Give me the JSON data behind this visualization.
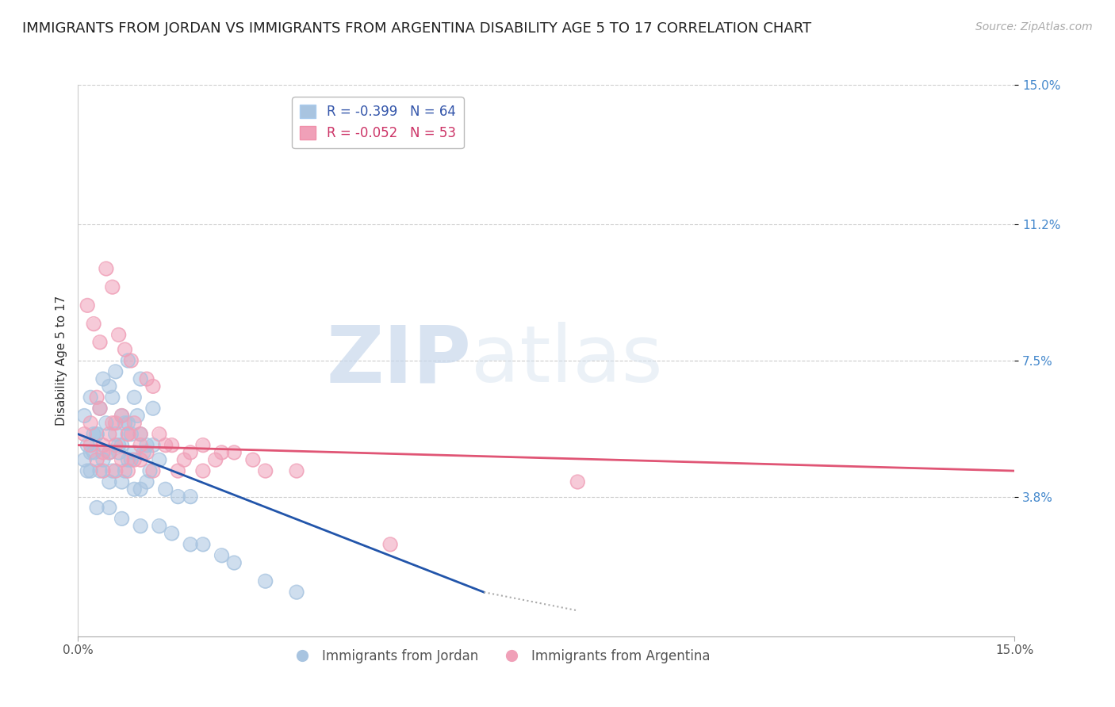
{
  "title": "IMMIGRANTS FROM JORDAN VS IMMIGRANTS FROM ARGENTINA DISABILITY AGE 5 TO 17 CORRELATION CHART",
  "source": "Source: ZipAtlas.com",
  "ylabel": "Disability Age 5 to 17",
  "xlabel": "",
  "xmin": 0.0,
  "xmax": 15.0,
  "ymin": 0.0,
  "ymax": 15.0,
  "yticks": [
    3.8,
    7.5,
    11.2,
    15.0
  ],
  "xticks": [
    0.0,
    15.0
  ],
  "grid_color": "#cccccc",
  "background_color": "#ffffff",
  "series1_label": "Immigrants from Jordan",
  "series1_color": "#a8c4e0",
  "series1_line_color": "#2255aa",
  "series1_R": "-0.399",
  "series1_N": "64",
  "series2_label": "Immigrants from Argentina",
  "series2_color": "#f0a0b8",
  "series2_line_color": "#e05575",
  "series2_R": "-0.052",
  "series2_N": "53",
  "watermark_zip": "ZIP",
  "watermark_atlas": "atlas",
  "title_fontsize": 13,
  "axis_label_fontsize": 11,
  "tick_fontsize": 11,
  "legend_fontsize": 12,
  "jordan_x": [
    0.1,
    0.2,
    0.3,
    0.4,
    0.5,
    0.6,
    0.7,
    0.8,
    0.9,
    1.0,
    0.15,
    0.25,
    0.35,
    0.45,
    0.55,
    0.65,
    0.75,
    0.85,
    0.95,
    1.1,
    0.1,
    0.2,
    0.3,
    0.5,
    0.6,
    0.7,
    0.8,
    0.9,
    1.0,
    1.2,
    0.15,
    0.25,
    0.4,
    0.55,
    0.65,
    0.75,
    0.85,
    1.05,
    1.15,
    1.3,
    0.2,
    0.35,
    0.5,
    0.7,
    0.9,
    1.0,
    1.1,
    1.4,
    1.6,
    1.8,
    0.3,
    0.5,
    0.7,
    1.0,
    1.3,
    1.5,
    1.8,
    2.0,
    2.3,
    2.5,
    3.0,
    3.5,
    0.8,
    1.2
  ],
  "jordan_y": [
    6.0,
    6.5,
    5.5,
    7.0,
    6.8,
    7.2,
    6.0,
    5.8,
    6.5,
    7.0,
    5.2,
    5.5,
    6.2,
    5.8,
    6.5,
    5.2,
    5.8,
    5.5,
    6.0,
    5.2,
    4.8,
    5.0,
    5.5,
    5.0,
    5.5,
    5.2,
    4.8,
    5.0,
    5.5,
    5.2,
    4.5,
    5.0,
    4.8,
    4.5,
    5.0,
    4.5,
    4.8,
    5.0,
    4.5,
    4.8,
    4.5,
    4.5,
    4.2,
    4.2,
    4.0,
    4.0,
    4.2,
    4.0,
    3.8,
    3.8,
    3.5,
    3.5,
    3.2,
    3.0,
    3.0,
    2.8,
    2.5,
    2.5,
    2.2,
    2.0,
    1.5,
    1.2,
    7.5,
    6.2
  ],
  "argentina_x": [
    0.1,
    0.2,
    0.3,
    0.4,
    0.5,
    0.6,
    0.7,
    0.8,
    0.9,
    1.0,
    0.15,
    0.25,
    0.35,
    0.45,
    0.55,
    0.65,
    0.75,
    0.85,
    1.1,
    1.2,
    0.2,
    0.4,
    0.6,
    0.8,
    1.0,
    1.3,
    1.5,
    1.8,
    2.0,
    2.3,
    0.3,
    0.5,
    0.7,
    0.9,
    1.1,
    1.4,
    1.7,
    2.2,
    2.5,
    2.8,
    0.4,
    0.6,
    0.8,
    1.0,
    1.2,
    1.6,
    2.0,
    3.0,
    3.5,
    5.0,
    0.35,
    0.55,
    8.0
  ],
  "argentina_y": [
    5.5,
    5.8,
    6.5,
    5.2,
    5.5,
    5.8,
    6.0,
    5.5,
    5.8,
    5.5,
    9.0,
    8.5,
    8.0,
    10.0,
    9.5,
    8.2,
    7.8,
    7.5,
    7.0,
    6.8,
    5.2,
    5.0,
    5.2,
    5.5,
    5.2,
    5.5,
    5.2,
    5.0,
    5.2,
    5.0,
    4.8,
    5.0,
    4.8,
    4.8,
    5.0,
    5.2,
    4.8,
    4.8,
    5.0,
    4.8,
    4.5,
    4.5,
    4.5,
    4.8,
    4.5,
    4.5,
    4.5,
    4.5,
    4.5,
    2.5,
    6.2,
    5.8,
    4.2
  ],
  "jordan_line": {
    "x0": 0.0,
    "y0": 5.5,
    "x1": 6.5,
    "y1": 1.2
  },
  "argentina_line": {
    "x0": 0.0,
    "y0": 5.2,
    "x1": 15.0,
    "y1": 4.5
  }
}
